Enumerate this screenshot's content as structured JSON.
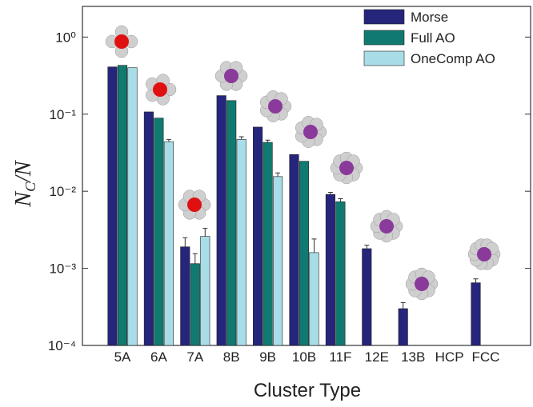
{
  "chart_data": {
    "type": "bar",
    "xlabel": "Cluster Type",
    "ylabel_parts": [
      "N",
      "C",
      "/N"
    ],
    "categories": [
      "5A",
      "6A",
      "7A",
      "8B",
      "9B",
      "10B",
      "11F",
      "12E",
      "13B",
      "HCP",
      "FCC"
    ],
    "log_y": true,
    "ylim": [
      0.0001,
      2.5
    ],
    "yticks": [
      {
        "value": 0.0001,
        "label": "10⁻⁴"
      },
      {
        "value": 0.001,
        "label": "10⁻³"
      },
      {
        "value": 0.01,
        "label": "10⁻²"
      },
      {
        "value": 0.1,
        "label": "10⁻¹"
      },
      {
        "value": 1,
        "label": "10⁰"
      }
    ],
    "legend": "upper right",
    "series": [
      {
        "name": "Morse",
        "color": "#25257c",
        "values": [
          0.41,
          0.107,
          0.0019,
          0.174,
          0.068,
          0.03,
          0.0091,
          0.0018,
          0.0003,
          null,
          0.00065
        ],
        "errors": [
          null,
          null,
          0.0006,
          null,
          null,
          null,
          0.0006,
          0.0002,
          6e-05,
          null,
          8e-05
        ]
      },
      {
        "name": "Full AO",
        "color": "#107a70",
        "values": [
          0.43,
          0.089,
          0.00115,
          0.15,
          0.043,
          0.0245,
          0.0073,
          null,
          null,
          null,
          null
        ],
        "errors": [
          null,
          null,
          0.0004,
          null,
          0.003,
          null,
          0.0007,
          null,
          null,
          null,
          null
        ]
      },
      {
        "name": "OneComp AO",
        "color": "#a8dde8",
        "values": [
          0.4,
          0.044,
          0.0026,
          0.047,
          0.0155,
          0.0016,
          null,
          null,
          null,
          null,
          null
        ],
        "errors": [
          null,
          0.003,
          0.0007,
          0.004,
          0.0018,
          0.0008,
          null,
          null,
          null,
          null,
          null
        ]
      }
    ]
  }
}
